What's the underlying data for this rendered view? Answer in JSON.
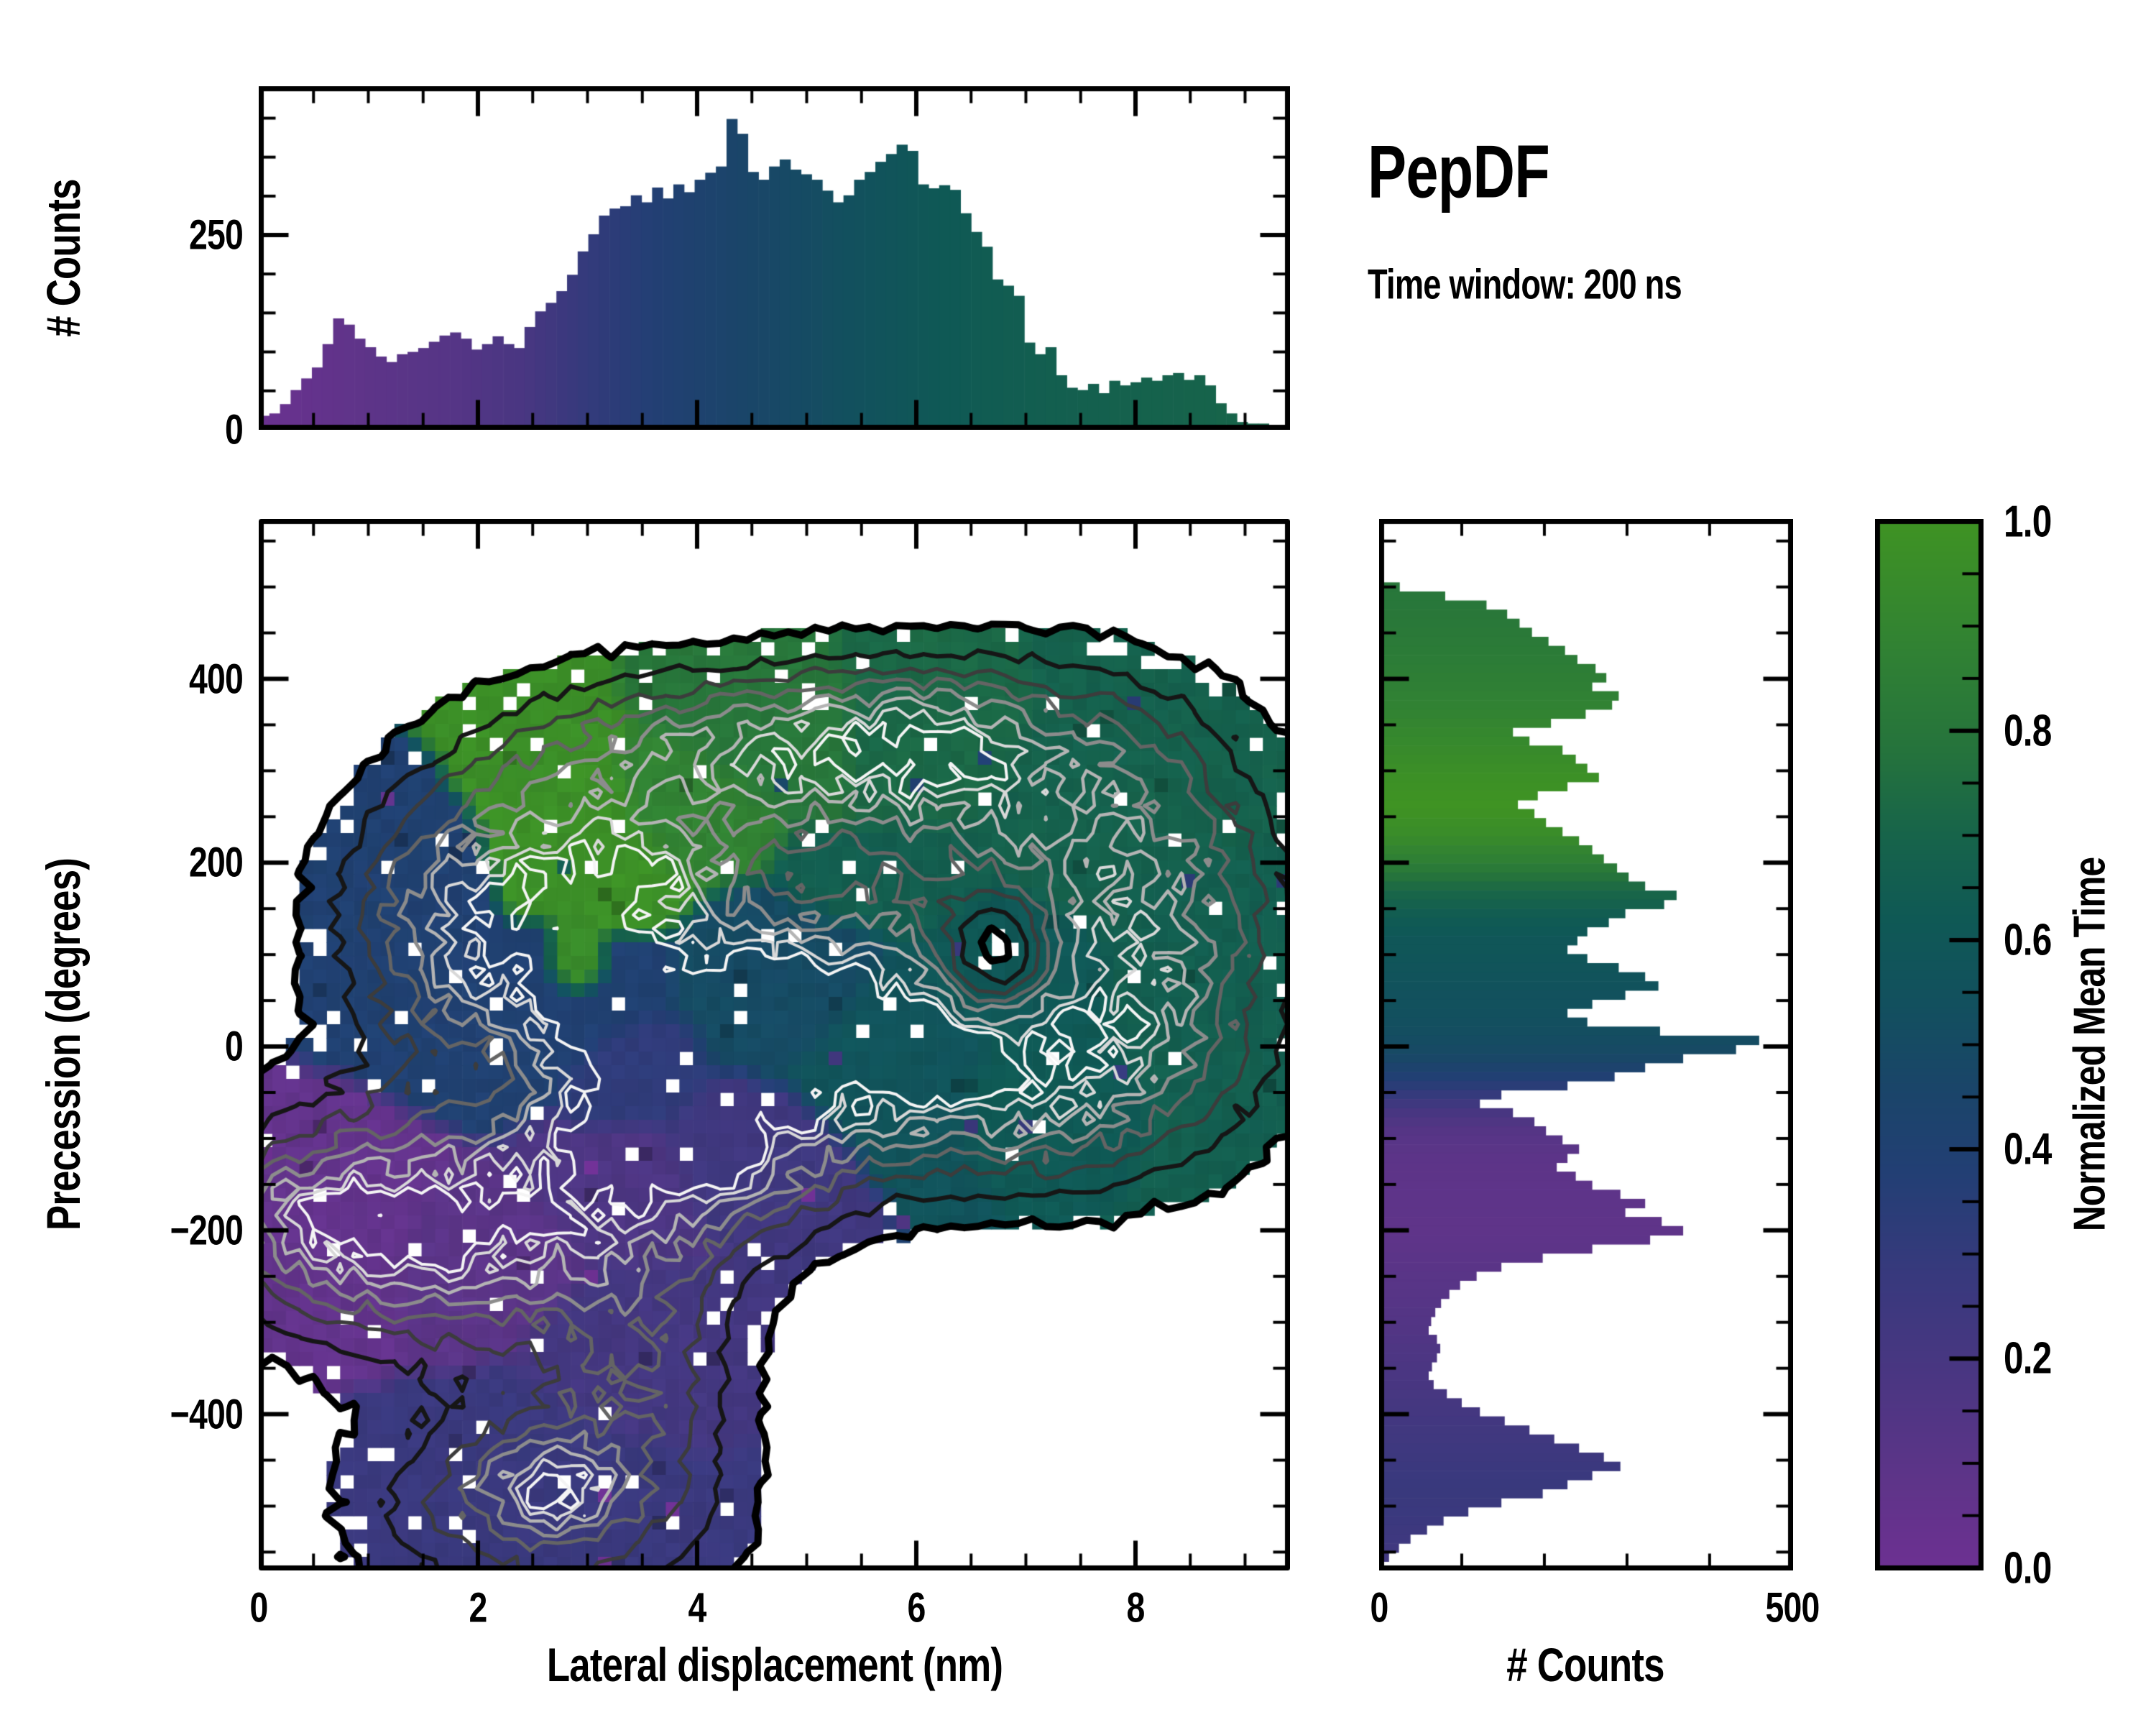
{
  "title": {
    "heading": "PepDF",
    "subtitle": "Time window: 200 ns"
  },
  "axes": {
    "top_hist": {
      "ylabel": "# Counts",
      "ytick_labels": [
        "0",
        "250"
      ],
      "ytick_values": [
        0,
        250
      ],
      "y_minor_step": 50,
      "ylim": [
        0,
        441
      ]
    },
    "main": {
      "xlabel": "Lateral displacement (nm)",
      "ylabel": "Precession (degrees)",
      "xtick_labels": [
        "0",
        "2",
        "4",
        "6",
        "8"
      ],
      "xtick_values": [
        0,
        2,
        4,
        6,
        8
      ],
      "x_minor_step": 0.5,
      "ytick_labels": [
        "400",
        "200",
        "0",
        "−200",
        "−400"
      ],
      "ytick_values": [
        400,
        200,
        0,
        -200,
        -400
      ],
      "y_minor_step": 50,
      "xlim": [
        0,
        9.41
      ],
      "ylim": [
        -570,
        574
      ]
    },
    "right_hist": {
      "xlabel": "# Counts",
      "xtick_labels": [
        "0",
        "500"
      ],
      "xtick_values": [
        0,
        500
      ],
      "x_minor_step": 100,
      "xlim": [
        0,
        501
      ]
    },
    "colorbar": {
      "label": "Normalized Mean Time",
      "tick_labels": [
        "1.0",
        "0.8",
        "0.6",
        "0.4",
        "0.2",
        "0.0"
      ],
      "tick_values": [
        1.0,
        0.8,
        0.6,
        0.4,
        0.2,
        0.0
      ],
      "minor_step": 0.05,
      "lim": [
        0,
        1
      ]
    }
  },
  "colors": {
    "background": "#ffffff",
    "axis": "#000000",
    "colormap_stops": [
      [
        0.0,
        "#6d3092"
      ],
      [
        0.08,
        "#5f3489"
      ],
      [
        0.18,
        "#4b3682"
      ],
      [
        0.28,
        "#38397d"
      ],
      [
        0.38,
        "#223f74"
      ],
      [
        0.46,
        "#1a4569"
      ],
      [
        0.54,
        "#12505e"
      ],
      [
        0.62,
        "#0f5955"
      ],
      [
        0.7,
        "#17644a"
      ],
      [
        0.78,
        "#25733c"
      ],
      [
        0.88,
        "#318233"
      ],
      [
        1.0,
        "#3f9323"
      ]
    ]
  },
  "chart_data": {
    "top_histogram": {
      "type": "bar",
      "title": "Counts vs lateral displacement, colored by normalized mean time",
      "x_start": 0,
      "bin_width": 0.097,
      "ylabel": "# Counts",
      "ylim": [
        0,
        441
      ],
      "yticks": [
        0,
        250
      ],
      "values": [
        18,
        21,
        33,
        51,
        66,
        80,
        110,
        143,
        135,
        117,
        106,
        94,
        87,
        97,
        100,
        105,
        113,
        121,
        125,
        117,
        103,
        110,
        120,
        110,
        105,
        132,
        152,
        163,
        178,
        199,
        229,
        251,
        275,
        284,
        287,
        301,
        292,
        311,
        297,
        315,
        305,
        321,
        330,
        338,
        399,
        380,
        331,
        321,
        338,
        347,
        334,
        328,
        321,
        307,
        292,
        301,
        321,
        331,
        344,
        354,
        366,
        358,
        315,
        310,
        314,
        308,
        278,
        254,
        235,
        193,
        185,
        172,
        112,
        97,
        106,
        70,
        54,
        51,
        59,
        47,
        63,
        57,
        61,
        67,
        63,
        70,
        73,
        64,
        70,
        57,
        34,
        21,
        10,
        8,
        8,
        4,
        3
      ],
      "color_profile": [
        [
          0,
          0.02
        ],
        [
          0.6,
          0.06
        ],
        [
          1.2,
          0.1
        ],
        [
          1.8,
          0.13
        ],
        [
          2.4,
          0.19
        ],
        [
          3,
          0.3
        ],
        [
          3.6,
          0.38
        ],
        [
          4.2,
          0.44
        ],
        [
          4.8,
          0.49
        ],
        [
          5.4,
          0.54
        ],
        [
          6,
          0.6
        ],
        [
          6.6,
          0.64
        ],
        [
          7.2,
          0.66
        ],
        [
          8,
          0.68
        ],
        [
          9.41,
          0.71
        ]
      ]
    },
    "right_histogram": {
      "type": "bar",
      "orientation": "horizontal",
      "title": "Counts vs precession, colored by normalized mean time",
      "y_start": 574,
      "bin_step": -9.862,
      "xlabel": "# Counts",
      "xlim": [
        0,
        501
      ],
      "xticks": [
        0,
        500
      ],
      "values": [
        0,
        0,
        0,
        0,
        0,
        0,
        5,
        25,
        80,
        130,
        155,
        170,
        185,
        205,
        225,
        240,
        262,
        275,
        258,
        290,
        282,
        250,
        208,
        162,
        182,
        222,
        238,
        252,
        266,
        228,
        192,
        168,
        188,
        202,
        222,
        242,
        258,
        272,
        288,
        302,
        322,
        360,
        345,
        298,
        278,
        252,
        240,
        228,
        252,
        290,
        322,
        338,
        298,
        258,
        228,
        252,
        340,
        460,
        432,
        368,
        322,
        285,
        228,
        148,
        122,
        162,
        188,
        202,
        222,
        242,
        228,
        215,
        238,
        258,
        292,
        322,
        298,
        342,
        368,
        328,
        258,
        198,
        148,
        118,
        98,
        85,
        75,
        68,
        63,
        60,
        70,
        74,
        70,
        64,
        60,
        66,
        82,
        100,
        122,
        152,
        182,
        212,
        242,
        272,
        292,
        258,
        228,
        198,
        148,
        108,
        78,
        58,
        38,
        24,
        12,
        4
      ],
      "color_profile": [
        [
          574,
          0.78
        ],
        [
          470,
          0.81
        ],
        [
          420,
          0.84
        ],
        [
          370,
          0.88
        ],
        [
          330,
          0.93
        ],
        [
          290,
          0.98
        ],
        [
          260,
          1.0
        ],
        [
          230,
          0.95
        ],
        [
          200,
          0.85
        ],
        [
          175,
          0.74
        ],
        [
          150,
          0.66
        ],
        [
          120,
          0.6
        ],
        [
          80,
          0.57
        ],
        [
          40,
          0.54
        ],
        [
          10,
          0.52
        ],
        [
          -15,
          0.47
        ],
        [
          -45,
          0.33
        ],
        [
          -70,
          0.2
        ],
        [
          -95,
          0.12
        ],
        [
          -130,
          0.09
        ],
        [
          -200,
          0.08
        ],
        [
          -250,
          0.11
        ],
        [
          -300,
          0.14
        ],
        [
          -350,
          0.18
        ],
        [
          -400,
          0.22
        ],
        [
          -440,
          0.25
        ],
        [
          -480,
          0.28
        ],
        [
          -520,
          0.26
        ],
        [
          -570,
          0.22
        ]
      ]
    },
    "main_map": {
      "type": "heatmap",
      "title": "2D histogram of precession vs lateral displacement, colored by normalized mean time, with density contours",
      "xlabel": "Lateral displacement (nm)",
      "ylabel": "Precession (degrees)",
      "xlim": [
        0,
        9.41
      ],
      "ylim": [
        -570,
        574
      ],
      "grid_nx": 76,
      "grid_ny": 77,
      "fill_threshold": 0.1,
      "density_clusters": [
        [
          2.6,
          -495,
          1.05,
          85,
          0.52
        ],
        [
          3.5,
          -340,
          0.62,
          85,
          0.34
        ],
        [
          0.8,
          -190,
          0.95,
          85,
          0.55
        ],
        [
          2.0,
          -215,
          0.95,
          75,
          0.45
        ],
        [
          3.2,
          -145,
          0.95,
          85,
          0.5
        ],
        [
          4.35,
          -95,
          0.85,
          75,
          0.42
        ],
        [
          2.8,
          30,
          1.15,
          105,
          0.52
        ],
        [
          4.6,
          60,
          1.15,
          95,
          0.52
        ],
        [
          5.9,
          -10,
          1.05,
          85,
          0.55
        ],
        [
          6.9,
          55,
          0.95,
          105,
          0.48
        ],
        [
          2.8,
          165,
          0.85,
          110,
          0.6
        ],
        [
          4.4,
          320,
          1.25,
          60,
          0.56
        ],
        [
          6.1,
          315,
          1.15,
          70,
          0.52
        ],
        [
          7.7,
          235,
          1.0,
          110,
          0.42
        ],
        [
          8.4,
          70,
          0.8,
          125,
          0.4
        ],
        [
          7.35,
          -35,
          0.75,
          75,
          0.32
        ],
        [
          1.6,
          170,
          0.7,
          85,
          0.32
        ],
        [
          4.75,
          65,
          0.3,
          22,
          0.42
        ],
        [
          5.95,
          -10,
          0.35,
          22,
          0.45
        ],
        [
          2.7,
          -480,
          0.35,
          26,
          0.55
        ],
        [
          0.55,
          -185,
          0.45,
          36,
          0.35
        ],
        [
          3.55,
          -100,
          0.32,
          26,
          0.28
        ],
        [
          6.1,
          330,
          0.5,
          36,
          0.2
        ],
        [
          3.6,
          195,
          0.45,
          30,
          0.25
        ],
        [
          1.6,
          -205,
          0.35,
          28,
          0.25
        ],
        [
          4.2,
          -130,
          0.3,
          25,
          0.2
        ],
        [
          6.75,
          90,
          0.45,
          55,
          -0.85
        ],
        [
          2.15,
          -30,
          0.35,
          45,
          -0.3
        ]
      ],
      "color_sites": [
        [
          2.9,
          210,
          1.0,
          120,
          0.97
        ],
        [
          2.85,
          85,
          0.5,
          75,
          0.95
        ],
        [
          3.9,
          265,
          0.8,
          80,
          0.88
        ],
        [
          4.8,
          330,
          1.1,
          80,
          0.8
        ],
        [
          6.0,
          330,
          1.1,
          85,
          0.72
        ],
        [
          7.8,
          255,
          1.2,
          130,
          0.68
        ],
        [
          8.5,
          90,
          0.9,
          140,
          0.66
        ],
        [
          7.1,
          -25,
          0.9,
          80,
          0.62
        ],
        [
          6.9,
          70,
          0.9,
          100,
          0.61
        ],
        [
          5.9,
          -5,
          1.15,
          95,
          0.57
        ],
        [
          4.7,
          60,
          1.05,
          95,
          0.5
        ],
        [
          2.6,
          50,
          1.25,
          115,
          0.4
        ],
        [
          1.5,
          165,
          0.8,
          95,
          0.4
        ],
        [
          3.4,
          -30,
          0.8,
          80,
          0.32
        ],
        [
          4.35,
          -115,
          0.85,
          80,
          0.24
        ],
        [
          3.25,
          -150,
          0.9,
          85,
          0.17
        ],
        [
          2.0,
          -220,
          0.95,
          80,
          0.1
        ],
        [
          0.75,
          -190,
          1.0,
          95,
          0.06
        ],
        [
          3.45,
          -335,
          0.75,
          95,
          0.22
        ],
        [
          2.6,
          -490,
          1.15,
          95,
          0.27
        ],
        [
          2.75,
          -480,
          0.5,
          40,
          0.32
        ],
        [
          5.8,
          185,
          0.9,
          60,
          0.66
        ]
      ],
      "contour_levels": [
        {
          "v": 0.1,
          "color": "#000000",
          "lw": 10
        },
        {
          "v": 0.22,
          "color": "#161616",
          "lw": 6
        },
        {
          "v": 0.34,
          "color": "#3c3c3c",
          "lw": 5
        },
        {
          "v": 0.46,
          "color": "#646464",
          "lw": 5
        },
        {
          "v": 0.58,
          "color": "#8c8c8c",
          "lw": 5
        },
        {
          "v": 0.7,
          "color": "#b4b4b4",
          "lw": 4.5
        },
        {
          "v": 0.82,
          "color": "#d8d8d8",
          "lw": 4
        },
        {
          "v": 0.92,
          "color": "#f4f4f4",
          "lw": 4
        }
      ]
    },
    "colorbar": {
      "type": "colorbar",
      "label": "Normalized Mean Time",
      "range": [
        0,
        1
      ],
      "ticks": [
        0.0,
        0.2,
        0.4,
        0.6,
        0.8,
        1.0
      ]
    }
  }
}
